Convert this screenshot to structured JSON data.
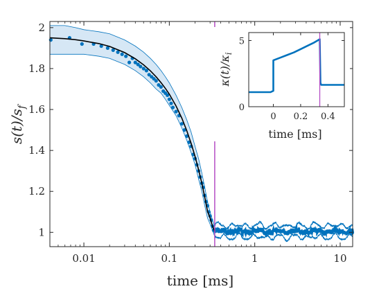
{
  "chart_data": [
    {
      "type": "scatter",
      "title": "",
      "xlabel": "time [ms]",
      "ylabel": "s(t)/s_f",
      "ylabel_parts": {
        "pre": "s(t)/s",
        "sub": "f"
      },
      "x_scale": "log",
      "xlim": [
        0.004,
        14
      ],
      "ylim": [
        0.93,
        2.03
      ],
      "x_ticks": [
        0.01,
        0.1,
        1,
        10
      ],
      "x_tick_labels": [
        "0.01",
        "0.1",
        "1",
        "10"
      ],
      "y_ticks": [
        1,
        1.2,
        1.4,
        1.6,
        1.8,
        2
      ],
      "y_tick_labels": [
        "1",
        "1.2",
        "1.4",
        "1.6",
        "1.8",
        "2"
      ],
      "grid": false,
      "vline_x": 0.34,
      "colors": {
        "data": "#0072BD",
        "band": "#cfe3f3",
        "fit": "#000000",
        "vline": "#B44CC4",
        "axes": "#262626"
      },
      "series": [
        {
          "kind": "points",
          "x": [
            0.0041,
            0.0068,
            0.0095,
            0.013,
            0.016,
            0.019,
            0.022,
            0.025,
            0.028,
            0.031,
            0.034,
            0.037,
            0.04,
            0.043,
            0.046,
            0.05,
            0.054,
            0.058,
            0.062,
            0.066,
            0.07,
            0.075,
            0.08,
            0.085,
            0.09,
            0.095,
            0.1,
            0.105,
            0.11,
            0.12,
            0.13,
            0.14,
            0.15,
            0.16,
            0.17,
            0.18,
            0.19,
            0.2,
            0.21,
            0.22,
            0.23,
            0.24,
            0.25,
            0.26,
            0.27,
            0.28,
            0.29,
            0.3,
            0.31,
            0.32,
            0.33
          ],
          "y": [
            1.94,
            1.95,
            1.92,
            1.92,
            1.91,
            1.9,
            1.89,
            1.88,
            1.87,
            1.86,
            1.83,
            1.85,
            1.83,
            1.82,
            1.81,
            1.8,
            1.79,
            1.77,
            1.76,
            1.75,
            1.74,
            1.72,
            1.71,
            1.69,
            1.68,
            1.67,
            1.65,
            1.63,
            1.61,
            1.59,
            1.57,
            1.53,
            1.5,
            1.47,
            1.44,
            1.42,
            1.38,
            1.36,
            1.33,
            1.3,
            1.27,
            1.24,
            1.22,
            1.18,
            1.15,
            1.13,
            1.1,
            1.08,
            1.06,
            1.03,
            1.01
          ]
        },
        {
          "kind": "fit",
          "x": [
            0.004,
            0.006,
            0.008,
            0.01,
            0.015,
            0.02,
            0.03,
            0.04,
            0.05,
            0.06,
            0.07,
            0.08,
            0.09,
            0.1,
            0.12,
            0.14,
            0.16,
            0.18,
            0.2,
            0.22,
            0.24,
            0.26,
            0.28,
            0.3,
            0.32,
            0.34
          ],
          "y": [
            1.95,
            1.946,
            1.941,
            1.935,
            1.922,
            1.908,
            1.878,
            1.848,
            1.818,
            1.789,
            1.76,
            1.731,
            1.703,
            1.675,
            1.617,
            1.558,
            1.497,
            1.435,
            1.371,
            1.306,
            1.24,
            1.172,
            1.103,
            1.07,
            1.03,
            1.005
          ]
        },
        {
          "kind": "band",
          "x": [
            0.004,
            0.006,
            0.008,
            0.01,
            0.015,
            0.02,
            0.03,
            0.04,
            0.05,
            0.06,
            0.07,
            0.08,
            0.09,
            0.1,
            0.12,
            0.14,
            0.16,
            0.18,
            0.2,
            0.22,
            0.24,
            0.26,
            0.28,
            0.3,
            0.32,
            0.34
          ],
          "upper": [
            2.01,
            2.01,
            2.0,
            1.99,
            1.98,
            1.97,
            1.94,
            1.91,
            1.88,
            1.85,
            1.82,
            1.79,
            1.76,
            1.73,
            1.67,
            1.61,
            1.55,
            1.49,
            1.42,
            1.36,
            1.29,
            1.22,
            1.15,
            1.1,
            1.06,
            1.03
          ],
          "lower": [
            1.87,
            1.87,
            1.87,
            1.87,
            1.86,
            1.85,
            1.82,
            1.79,
            1.76,
            1.73,
            1.7,
            1.68,
            1.65,
            1.62,
            1.57,
            1.51,
            1.45,
            1.39,
            1.33,
            1.26,
            1.2,
            1.13,
            1.07,
            1.04,
            1.01,
            0.98
          ]
        },
        {
          "kind": "noise",
          "x_range": [
            0.34,
            14
          ],
          "center": 1.005,
          "band_halfwidth": 0.028
        }
      ]
    },
    {
      "type": "line",
      "title": "",
      "xlabel": "time [ms]",
      "ylabel": "κ(t)/κ_i",
      "ylabel_parts": {
        "pre": "κ(t)/κ",
        "sub": "i"
      },
      "xlim": [
        -0.18,
        0.52
      ],
      "ylim": [
        0,
        5.6
      ],
      "x_ticks": [
        0,
        0.2,
        0.4
      ],
      "x_tick_labels": [
        "0",
        "0.2",
        "0.4"
      ],
      "y_ticks": [
        0,
        5
      ],
      "y_tick_labels": [
        "0",
        "5"
      ],
      "grid": false,
      "vline_x": 0.34,
      "series": [
        {
          "kind": "line",
          "x": [
            -0.18,
            -0.1,
            -0.02,
            0.0,
            0.0,
            0.05,
            0.1,
            0.15,
            0.2,
            0.25,
            0.3,
            0.34,
            0.345,
            0.35,
            0.4,
            0.45,
            0.52
          ],
          "y": [
            1.1,
            1.1,
            1.1,
            1.2,
            3.5,
            3.7,
            3.9,
            4.1,
            4.35,
            4.6,
            4.85,
            5.1,
            1.8,
            1.65,
            1.65,
            1.65,
            1.65
          ]
        }
      ]
    }
  ]
}
